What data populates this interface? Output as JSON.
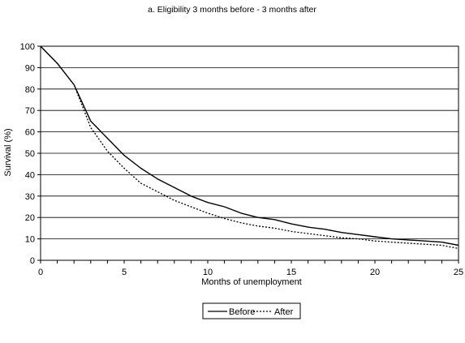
{
  "chart_data": {
    "type": "line",
    "title": "a. Eligibility 3 months before - 3 months after",
    "xlabel": "Months of unemployment",
    "ylabel": "Survival (%)",
    "xlim": [
      0,
      25
    ],
    "ylim": [
      0,
      100
    ],
    "xticks": [
      0,
      5,
      10,
      15,
      20,
      25
    ],
    "yticks": [
      0,
      10,
      20,
      30,
      40,
      50,
      60,
      70,
      80,
      90,
      100
    ],
    "grid": "horizontal",
    "legend_position": "bottom-center",
    "series": [
      {
        "name": "Before",
        "style": "solid",
        "color": "#000000",
        "x": [
          0,
          1,
          2,
          3,
          4,
          5,
          6,
          7,
          8,
          9,
          10,
          11,
          12,
          13,
          14,
          15,
          16,
          17,
          18,
          19,
          20,
          21,
          22,
          23,
          24,
          25
        ],
        "y": [
          100,
          92,
          82,
          65,
          57,
          49,
          43,
          38,
          34,
          30,
          27,
          25,
          22,
          20,
          19,
          17,
          15.5,
          14.5,
          13,
          12,
          11,
          10,
          9.5,
          9,
          8.5,
          7
        ]
      },
      {
        "name": "After",
        "style": "dotted",
        "color": "#000000",
        "x": [
          0,
          1,
          2,
          3,
          4,
          5,
          6,
          7,
          8,
          9,
          10,
          11,
          12,
          13,
          14,
          15,
          16,
          17,
          18,
          19,
          20,
          21,
          22,
          23,
          24,
          25
        ],
        "y": [
          100,
          92,
          82,
          62,
          51,
          43,
          36,
          32,
          28,
          25,
          22,
          19.5,
          17.5,
          16,
          15,
          13.5,
          12.5,
          11.5,
          10.5,
          10,
          9,
          8.5,
          8,
          7.5,
          7,
          5.5
        ]
      }
    ]
  }
}
